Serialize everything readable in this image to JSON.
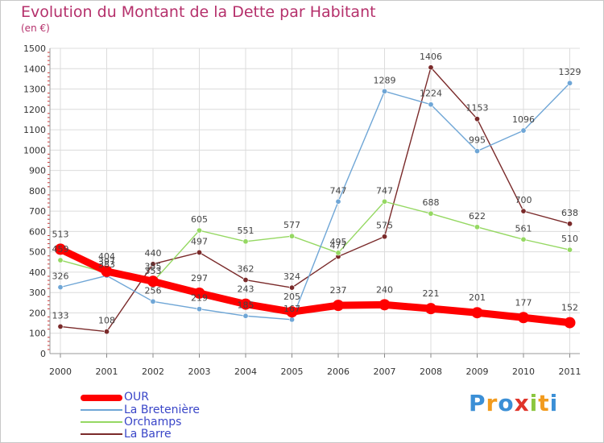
{
  "chart_data": {
    "type": "line",
    "title": "Evolution du Montant de la Dette par Habitant",
    "subtitle": "(en €)",
    "categories": [
      "2000",
      "2001",
      "2002",
      "2003",
      "2004",
      "2005",
      "2006",
      "2007",
      "2008",
      "2009",
      "2010",
      "2011"
    ],
    "ylim": [
      0,
      1500
    ],
    "yticks": [
      0,
      100,
      200,
      300,
      400,
      500,
      600,
      700,
      800,
      900,
      1000,
      1100,
      1200,
      1300,
      1400,
      1500
    ],
    "series": [
      {
        "name": "OUR",
        "color": "#ff0000",
        "values": [
          513,
          404,
          355,
          297,
          243,
          205,
          237,
          240,
          221,
          201,
          177,
          152
        ]
      },
      {
        "name": "La Bretenière",
        "color": "#6fa6d6",
        "values": [
          326,
          383,
          256,
          219,
          185,
          167,
          747,
          1289,
          1224,
          995,
          1096,
          1329
        ]
      },
      {
        "name": "Orchamps",
        "color": "#95d862",
        "values": [
          459,
          397,
          353,
          605,
          551,
          577,
          495,
          747,
          688,
          622,
          561,
          510
        ]
      },
      {
        "name": "La Barre",
        "color": "#7a2a2a",
        "values": [
          133,
          108,
          440,
          497,
          362,
          324,
          477,
          575,
          1406,
          1153,
          700,
          638
        ]
      }
    ]
  }
}
